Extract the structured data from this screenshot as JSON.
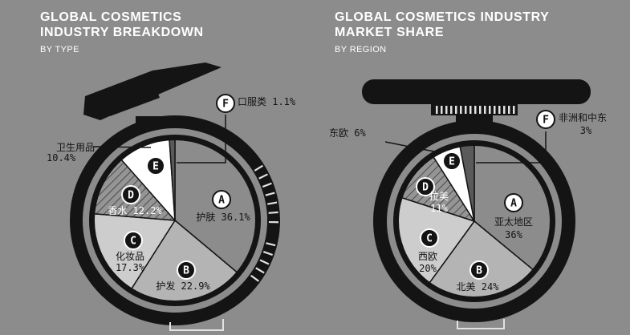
{
  "colors": {
    "background": "#8c8c8c",
    "compact": "#141414",
    "tick_stripe": "#e2e2e2",
    "label_text": "#141414",
    "badge_text": "#141414",
    "leader_line": "#141414"
  },
  "chart_data": [
    {
      "type": "pie",
      "title": "GLOBAL COSMETICS INDUSTRY BREAKDOWN",
      "subtitle": "BY TYPE",
      "unit": "%",
      "slices": [
        {
          "badge": "A",
          "label": "护肤",
          "value_text": "36.1%",
          "value": 36.1,
          "color": "#8c8c8c",
          "hatch": false,
          "text_color": "#141414",
          "badge_style": "light"
        },
        {
          "badge": "B",
          "label": "护发",
          "value_text": "22.9%",
          "value": 22.9,
          "color": "#b4b4b4",
          "hatch": false,
          "text_color": "#141414",
          "badge_style": "dark"
        },
        {
          "badge": "C",
          "label": "化妆品",
          "value_text": "17.3%",
          "value": 17.3,
          "color": "#cdcdcd",
          "hatch": false,
          "text_color": "#141414",
          "badge_style": "dark"
        },
        {
          "badge": "D",
          "label": "香水",
          "value_text": "12.2%",
          "value": 12.2,
          "color": "#959595",
          "hatch": true,
          "text_color": "#ffffff",
          "badge_style": "dark"
        },
        {
          "badge": "E",
          "label": "卫生用品",
          "value_text": "10.4%",
          "value": 10.4,
          "color": "#ffffff",
          "hatch": false,
          "text_color": "#141414",
          "badge_style": "dark"
        },
        {
          "badge": "F",
          "label": "口服类",
          "value_text": "1.1%",
          "value": 1.1,
          "color": "#5a5a5a",
          "hatch": false,
          "text_color": "#141414",
          "badge_style": "light"
        }
      ]
    },
    {
      "type": "pie",
      "title": "GLOBAL COSMETICS INDUSTRY MARKET SHARE",
      "subtitle": "BY REGION",
      "unit": "%",
      "slices": [
        {
          "badge": "A",
          "label": "亚太地区",
          "value_text": "36%",
          "value": 36,
          "color": "#8c8c8c",
          "hatch": false,
          "text_color": "#141414",
          "badge_style": "light"
        },
        {
          "badge": "B",
          "label": "北美",
          "value_text": "24%",
          "value": 24,
          "color": "#b4b4b4",
          "hatch": false,
          "text_color": "#141414",
          "badge_style": "dark"
        },
        {
          "badge": "C",
          "label": "西欧",
          "value_text": "20%",
          "value": 20,
          "color": "#cdcdcd",
          "hatch": false,
          "text_color": "#141414",
          "badge_style": "dark"
        },
        {
          "badge": "D",
          "label": "拉美",
          "value_text": "11%",
          "value": 11,
          "color": "#959595",
          "hatch": true,
          "text_color": "#ffffff",
          "badge_style": "dark"
        },
        {
          "badge": "E",
          "label": "东欧",
          "value_text": "6%",
          "value": 6,
          "color": "#ffffff",
          "hatch": false,
          "text_color": "#141414",
          "badge_style": "dark"
        },
        {
          "badge": "F",
          "label": "非洲和中东",
          "value_text": "3%",
          "value": 3,
          "color": "#5a5a5a",
          "hatch": false,
          "text_color": "#141414",
          "badge_style": "light"
        }
      ]
    }
  ],
  "titles": {
    "left_line1": "GLOBAL COSMETICS",
    "left_line2": "INDUSTRY BREAKDOWN",
    "left_sub": "BY TYPE",
    "right_line1": "GLOBAL COSMETICS INDUSTRY",
    "right_line2": "MARKET SHARE",
    "right_sub": "BY REGION"
  }
}
